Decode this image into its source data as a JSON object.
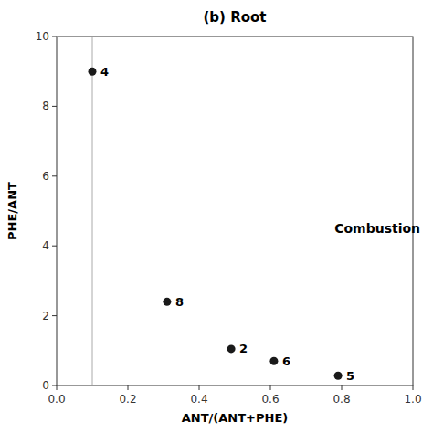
{
  "chart_data": {
    "type": "scatter",
    "title": "(b) Root",
    "x_label": "ANT/(ANT+PHE)",
    "y_label": "PHE/ANT",
    "x": [
      0.1,
      0.31,
      0.49,
      0.61,
      0.79
    ],
    "values": [
      9.0,
      2.4,
      1.05,
      0.7,
      0.28
    ],
    "point_labels": [
      "4",
      "8",
      "2",
      "6",
      "5"
    ],
    "color": "#1a1a1a",
    "xlim": [
      0,
      1
    ],
    "ylim": [
      0,
      10
    ],
    "xticks": [
      {
        "value": 0,
        "label": "0.0"
      },
      0.2,
      0.4,
      0.6,
      0.8,
      {
        "value": 1.0,
        "label": "1.0"
      }
    ],
    "yticks": [
      0,
      2,
      4,
      6,
      8,
      10
    ],
    "reference_lines": [
      {
        "x": 0.1,
        "color": "#aaaaaa"
      }
    ],
    "annotations": [
      {
        "text": "Combustion",
        "x": 0.78,
        "y": 4.5
      }
    ],
    "grid": false
  }
}
